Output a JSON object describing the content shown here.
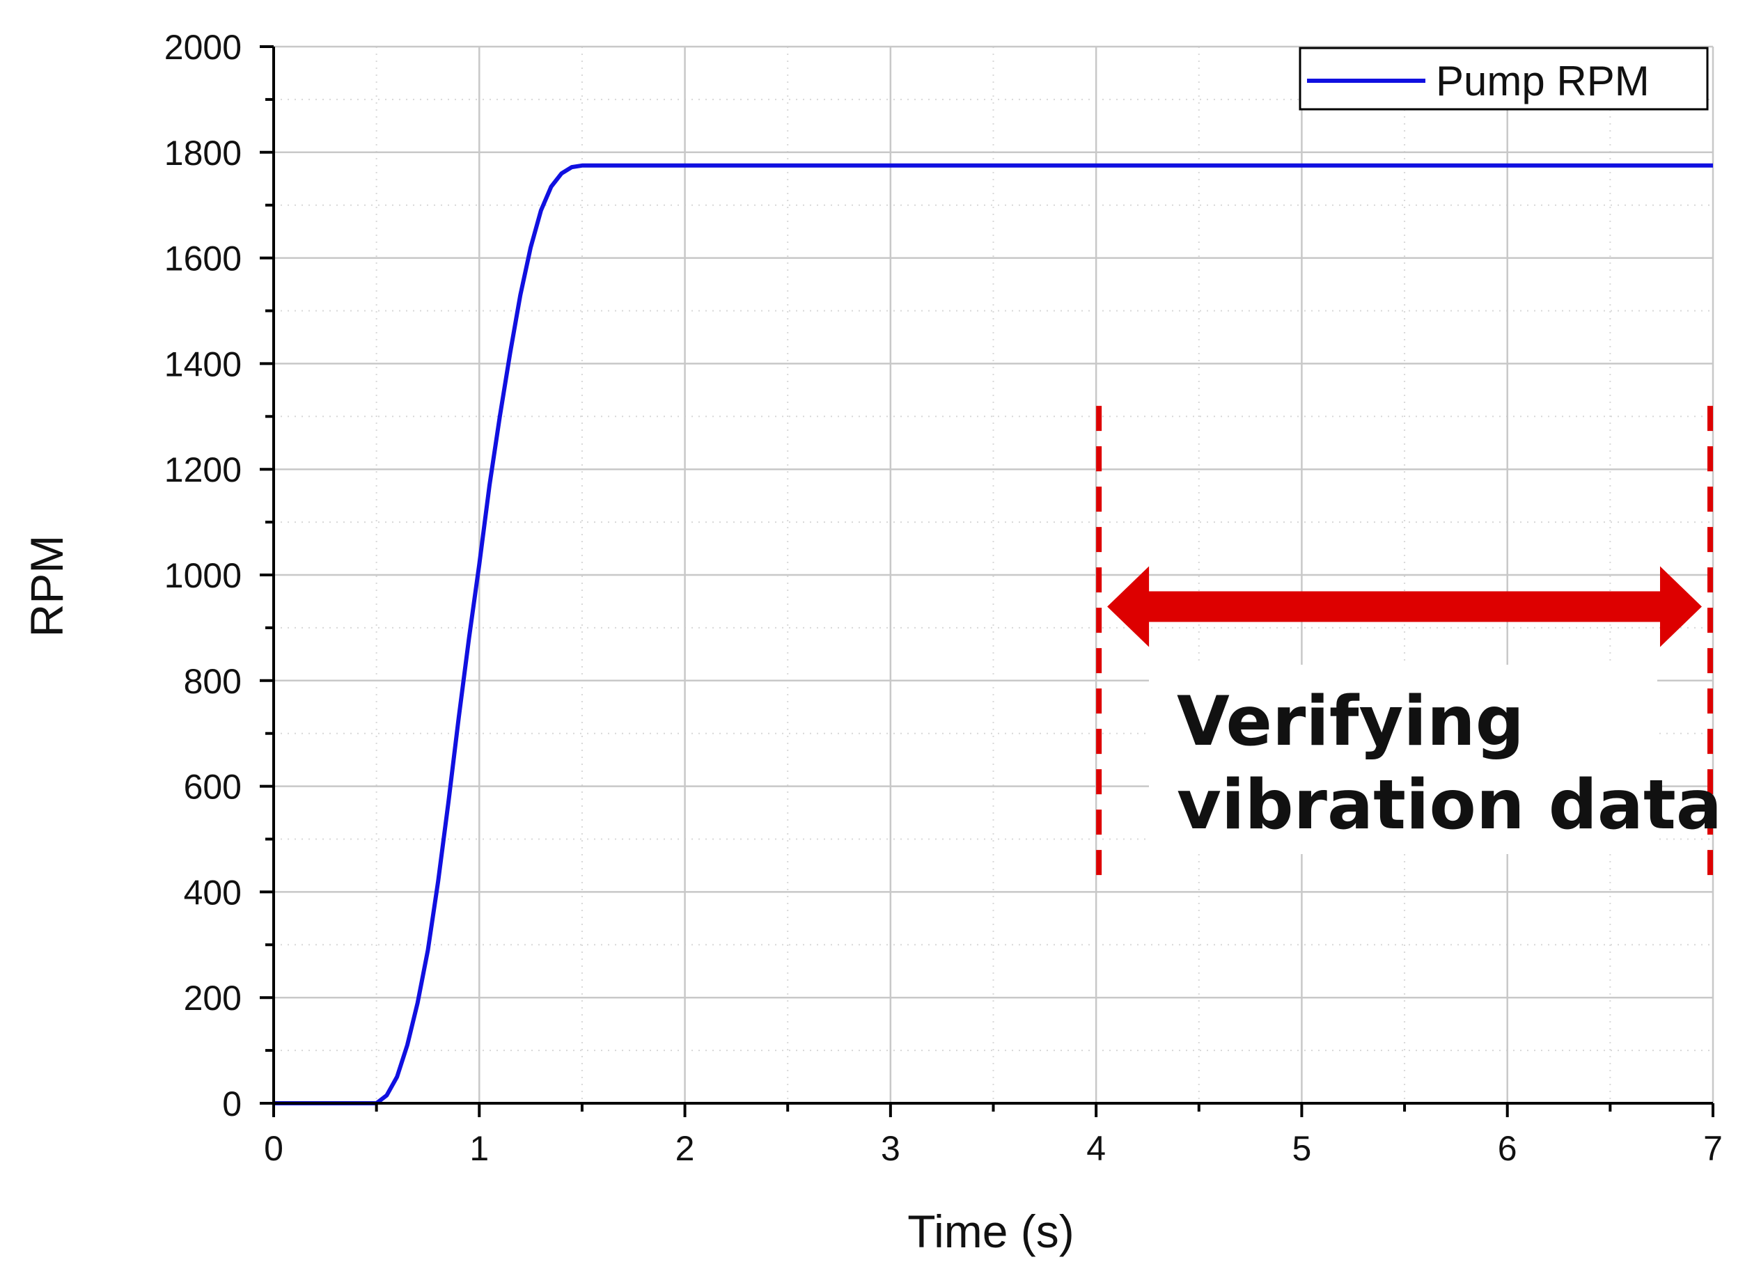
{
  "chart_data": {
    "type": "line",
    "title": "",
    "xlabel": "Time (s)",
    "ylabel": "RPM",
    "xlim": [
      0,
      7
    ],
    "ylim": [
      0,
      2000
    ],
    "x_major_ticks": [
      0,
      1,
      2,
      3,
      4,
      5,
      6,
      7
    ],
    "x_tick_labels": [
      "0",
      "1",
      "2",
      "3",
      "4",
      "5",
      "6",
      "7"
    ],
    "y_major_ticks": [
      0,
      200,
      400,
      600,
      800,
      1000,
      1200,
      1400,
      1600,
      1800,
      2000
    ],
    "y_tick_labels": [
      "0",
      "200",
      "400",
      "600",
      "800",
      "1000",
      "1200",
      "1400",
      "1600",
      "1800",
      "2000"
    ],
    "grid": true,
    "legend_position": "top-right",
    "series": [
      {
        "name": "Pump RPM",
        "color": "#1010e0",
        "x": [
          0,
          0.5,
          0.55,
          0.6,
          0.65,
          0.7,
          0.75,
          0.8,
          0.85,
          0.9,
          0.95,
          1.0,
          1.05,
          1.1,
          1.15,
          1.2,
          1.25,
          1.3,
          1.35,
          1.4,
          1.45,
          1.5,
          2,
          3,
          4,
          5,
          6,
          7
        ],
        "y": [
          0,
          0,
          15,
          50,
          110,
          190,
          290,
          420,
          570,
          730,
          880,
          1020,
          1170,
          1300,
          1420,
          1530,
          1620,
          1690,
          1735,
          1760,
          1772,
          1775,
          1775,
          1775,
          1775,
          1775,
          1775,
          1775
        ]
      }
    ],
    "annotations": {
      "region_start": 4,
      "region_end": 7,
      "region_color": "#dd0000",
      "arrow_level_y": 940,
      "line_top_y": 1320,
      "line_bottom_y": 420,
      "text_lines": [
        "Verifying",
        "vibration data"
      ]
    }
  }
}
